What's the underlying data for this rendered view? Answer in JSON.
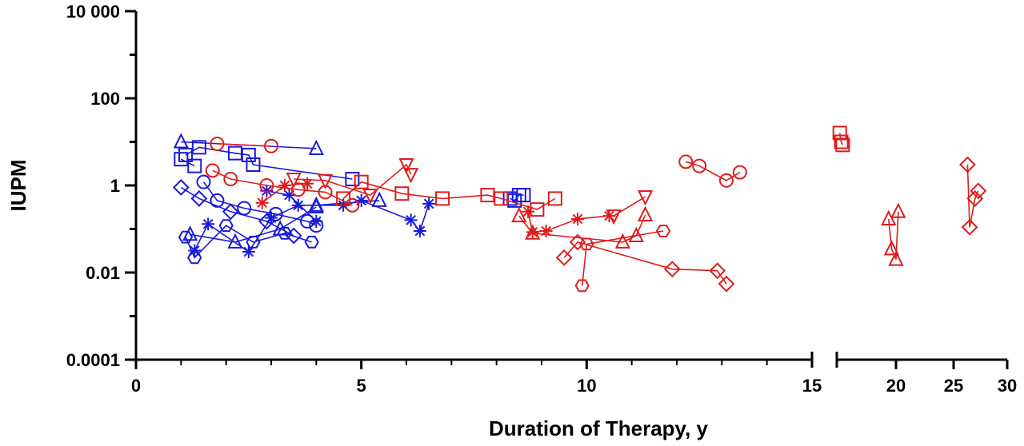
{
  "chart_data": {
    "type": "scatter",
    "title": "",
    "xlabel": "Duration of Therapy, y",
    "ylabel": "IUPM",
    "y_scale": "log",
    "ylim": [
      0.0001,
      10000
    ],
    "y_ticks": [
      {
        "value": 10000,
        "label": "10 000"
      },
      {
        "value": 100,
        "label": "100"
      },
      {
        "value": 1,
        "label": "1"
      },
      {
        "value": 0.01,
        "label": "0.01"
      },
      {
        "value": 0.0001,
        "label": "0.0001"
      }
    ],
    "x_axis_broken": true,
    "x_segments": [
      {
        "range": [
          0,
          15
        ],
        "ticks": [
          {
            "value": 0,
            "label": "0"
          },
          {
            "value": 5,
            "label": "5"
          },
          {
            "value": 10,
            "label": "10"
          },
          {
            "value": 15,
            "label": "15"
          }
        ]
      },
      {
        "range": [
          16,
          30
        ],
        "ticks": [
          {
            "value": 20,
            "label": "20"
          },
          {
            "value": 25,
            "label": "25"
          },
          {
            "value": 30,
            "label": "30"
          }
        ]
      }
    ],
    "grid": false,
    "legend": "none",
    "series_colors": {
      "blue": "#1a1adc",
      "red": "#e01b1b"
    },
    "series": [
      {
        "color": "blue",
        "marker": "triangle",
        "points": [
          [
            1.0,
            10.0
          ],
          [
            4.0,
            7.0
          ]
        ]
      },
      {
        "color": "blue",
        "marker": "square",
        "points": [
          [
            1.1,
            5.0
          ],
          [
            1.4,
            7.5
          ],
          [
            2.2,
            5.5
          ],
          [
            2.5,
            5.0
          ],
          [
            2.6,
            3.0
          ],
          [
            4.8,
            1.4
          ]
        ]
      },
      {
        "color": "blue",
        "marker": "square",
        "points": [
          [
            1.0,
            4.0
          ],
          [
            1.3,
            2.8
          ]
        ]
      },
      {
        "color": "blue",
        "marker": "square",
        "points": [
          [
            8.3,
            0.5
          ],
          [
            8.4,
            0.45
          ],
          [
            8.5,
            0.6
          ],
          [
            8.6,
            0.6
          ]
        ]
      },
      {
        "color": "blue",
        "marker": "diamond",
        "points": [
          [
            1.0,
            0.9
          ],
          [
            1.4,
            0.5
          ],
          [
            2.1,
            0.25
          ],
          [
            2.9,
            0.15
          ],
          [
            3.5,
            0.07
          ]
        ]
      },
      {
        "color": "blue",
        "marker": "circle",
        "points": [
          [
            1.5,
            1.2
          ],
          [
            1.8,
            0.45
          ],
          [
            2.4,
            0.3
          ],
          [
            3.1,
            0.22
          ],
          [
            3.8,
            0.15
          ],
          [
            4.0,
            0.12
          ]
        ]
      },
      {
        "color": "blue",
        "marker": "hexagon",
        "points": [
          [
            1.1,
            0.065
          ],
          [
            1.3,
            0.022
          ],
          [
            2.0,
            0.12
          ],
          [
            2.6,
            0.05
          ],
          [
            3.3,
            0.08
          ],
          [
            3.9,
            0.05
          ]
        ]
      },
      {
        "color": "blue",
        "marker": "triangle",
        "points": [
          [
            1.2,
            0.075
          ],
          [
            2.2,
            0.05
          ],
          [
            3.2,
            0.1
          ],
          [
            4.0,
            0.32
          ]
        ]
      },
      {
        "color": "blue",
        "marker": "asterisk",
        "points": [
          [
            1.3,
            0.032
          ],
          [
            1.6,
            0.13
          ],
          [
            2.5,
            0.03
          ],
          [
            3.0,
            0.18
          ],
          [
            3.6,
            0.35
          ],
          [
            4.6,
            0.35
          ],
          [
            5.0,
            0.45
          ],
          [
            6.1,
            0.16
          ],
          [
            6.3,
            0.09
          ],
          [
            6.5,
            0.38
          ]
        ]
      },
      {
        "color": "blue",
        "marker": "asterisk",
        "points": [
          [
            2.9,
            0.75
          ],
          [
            3.4,
            0.6
          ],
          [
            4.0,
            0.15
          ]
        ]
      },
      {
        "color": "blue",
        "marker": "triangle",
        "points": [
          [
            4.0,
            0.35
          ],
          [
            5.4,
            0.45
          ]
        ]
      },
      {
        "color": "red",
        "marker": "circle",
        "points": [
          [
            1.8,
            9.0
          ],
          [
            3.0,
            8.0
          ]
        ]
      },
      {
        "color": "red",
        "marker": "circle",
        "points": [
          [
            1.7,
            2.2
          ],
          [
            2.1,
            1.4
          ],
          [
            2.9,
            1.0
          ],
          [
            3.6,
            0.8
          ],
          [
            4.2,
            0.7
          ],
          [
            4.8,
            0.35
          ]
        ]
      },
      {
        "color": "red",
        "marker": "square",
        "points": [
          [
            4.6,
            0.5
          ],
          [
            5.0,
            1.2
          ],
          [
            5.9,
            0.65
          ],
          [
            6.8,
            0.5
          ],
          [
            7.8,
            0.6
          ],
          [
            8.1,
            0.5
          ],
          [
            8.9,
            0.28
          ],
          [
            9.3,
            0.5
          ]
        ]
      },
      {
        "color": "red",
        "marker": "triangle-down",
        "points": [
          [
            3.5,
            1.4
          ],
          [
            4.2,
            1.3
          ],
          [
            5.2,
            0.6
          ],
          [
            6.0,
            3.0
          ],
          [
            6.1,
            1.8
          ]
        ]
      },
      {
        "color": "red",
        "marker": "asterisk",
        "points": [
          [
            2.8,
            0.4
          ],
          [
            3.3,
            1.0
          ],
          [
            3.8,
            1.1
          ]
        ]
      },
      {
        "color": "red",
        "marker": "asterisk",
        "points": [
          [
            8.7,
            0.25
          ],
          [
            8.8,
            0.085
          ],
          [
            9.1,
            0.09
          ],
          [
            9.8,
            0.17
          ],
          [
            10.5,
            0.2
          ]
        ]
      },
      {
        "color": "red",
        "marker": "triangle",
        "points": [
          [
            8.5,
            0.2
          ],
          [
            8.8,
            0.08
          ],
          [
            10.8,
            0.05
          ],
          [
            11.1,
            0.07
          ],
          [
            11.3,
            0.21
          ]
        ]
      },
      {
        "color": "red",
        "marker": "triangle-down",
        "points": [
          [
            10.6,
            0.2
          ],
          [
            11.3,
            0.55
          ]
        ]
      },
      {
        "color": "red",
        "marker": "diamond",
        "points": [
          [
            9.5,
            0.022
          ],
          [
            9.8,
            0.05
          ],
          [
            11.9,
            0.012
          ],
          [
            12.9,
            0.011
          ],
          [
            13.1,
            0.0055
          ]
        ]
      },
      {
        "color": "red",
        "marker": "hexagon",
        "points": [
          [
            9.9,
            0.005
          ],
          [
            10.0,
            0.045
          ],
          [
            11.7,
            0.09
          ]
        ]
      },
      {
        "color": "red",
        "marker": "circle",
        "points": [
          [
            12.2,
            3.5
          ],
          [
            12.5,
            2.8
          ],
          [
            13.1,
            1.3
          ],
          [
            13.4,
            2.0
          ]
        ]
      },
      {
        "color": "red",
        "marker": "square",
        "points": [
          [
            16.2,
            16.0
          ],
          [
            16.3,
            10.0
          ],
          [
            16.4,
            8.5
          ]
        ]
      },
      {
        "color": "red",
        "marker": "triangle",
        "points": [
          [
            19.5,
            0.17
          ],
          [
            19.7,
            0.035
          ],
          [
            20.0,
            0.02
          ],
          [
            20.2,
            0.25
          ]
        ]
      },
      {
        "color": "red",
        "marker": "diamond",
        "points": [
          [
            26.3,
            3.0
          ],
          [
            26.5,
            0.11
          ],
          [
            27.0,
            0.5
          ],
          [
            27.3,
            0.75
          ]
        ]
      }
    ]
  }
}
